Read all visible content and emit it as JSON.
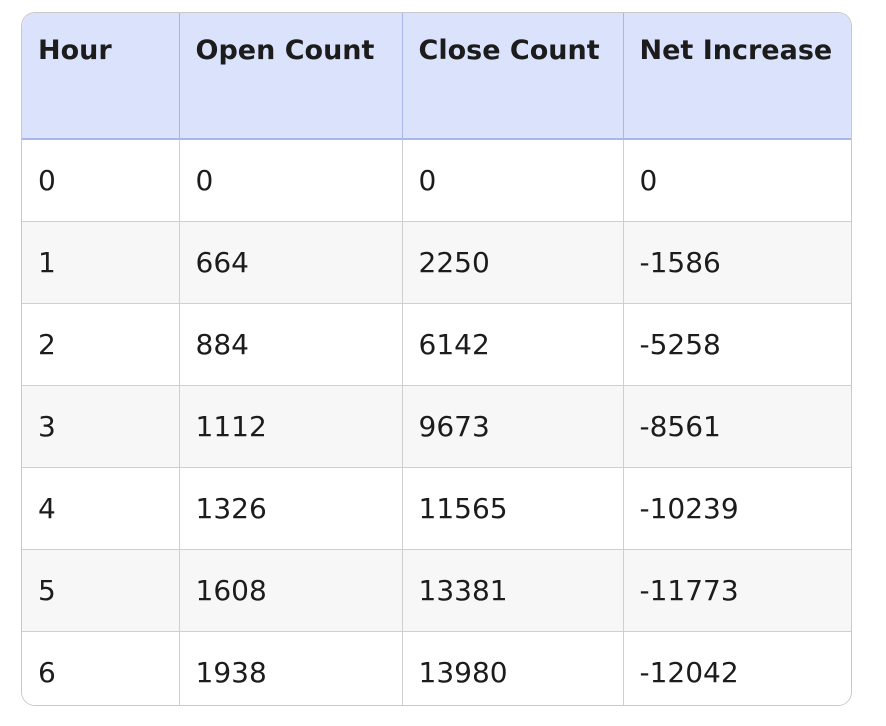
{
  "table": {
    "headers": [
      "Hour",
      "Open Count",
      "Close Count",
      "Net Increase"
    ],
    "rows": [
      [
        "0",
        "0",
        "0",
        "0"
      ],
      [
        "1",
        "664",
        "2250",
        "-1586"
      ],
      [
        "2",
        "884",
        "6142",
        "-5258"
      ],
      [
        "3",
        "1112",
        "9673",
        "-8561"
      ],
      [
        "4",
        "1326",
        "11565",
        "-10239"
      ],
      [
        "5",
        "1608",
        "13381",
        "-11773"
      ],
      [
        "6",
        "1938",
        "13980",
        "-12042"
      ]
    ]
  },
  "colors": {
    "header_bg": "#dbe2fb",
    "stripe_bg": "#f7f7f7",
    "border": "#cfcfcf"
  }
}
